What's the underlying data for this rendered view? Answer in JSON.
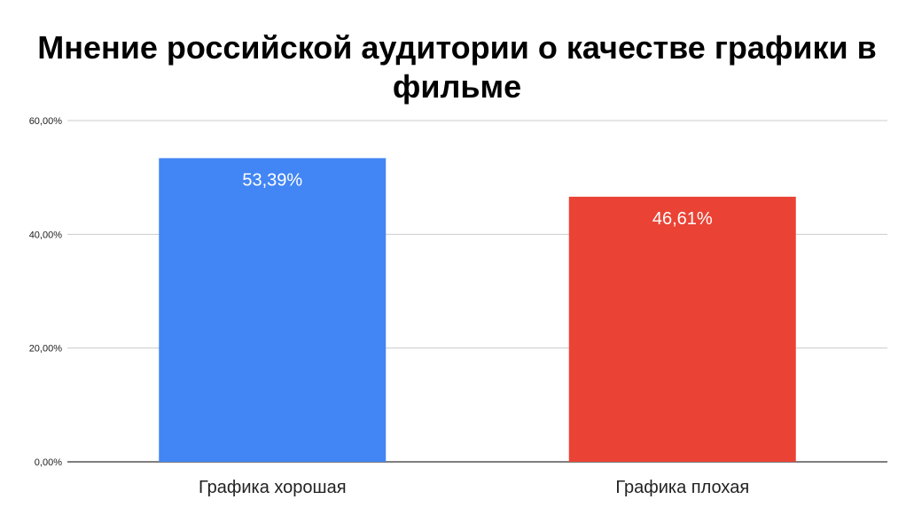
{
  "chart_data": {
    "type": "bar",
    "title": "Мнение российской аудитории о качестве графики в фильме",
    "categories": [
      "Графика хорошая",
      "Графика плохая"
    ],
    "values": [
      53.39,
      46.61
    ],
    "data_labels": [
      "53,39%",
      "46,61%"
    ],
    "colors": [
      "#4285F4",
      "#EA4335"
    ],
    "ylim": [
      0,
      60
    ],
    "yticks": [
      0,
      20,
      40,
      60
    ],
    "ytick_labels": [
      "0,00%",
      "20,00%",
      "40,00%",
      "60,00%"
    ],
    "xlabel": "",
    "ylabel": "",
    "grid": true,
    "legend": "none"
  }
}
